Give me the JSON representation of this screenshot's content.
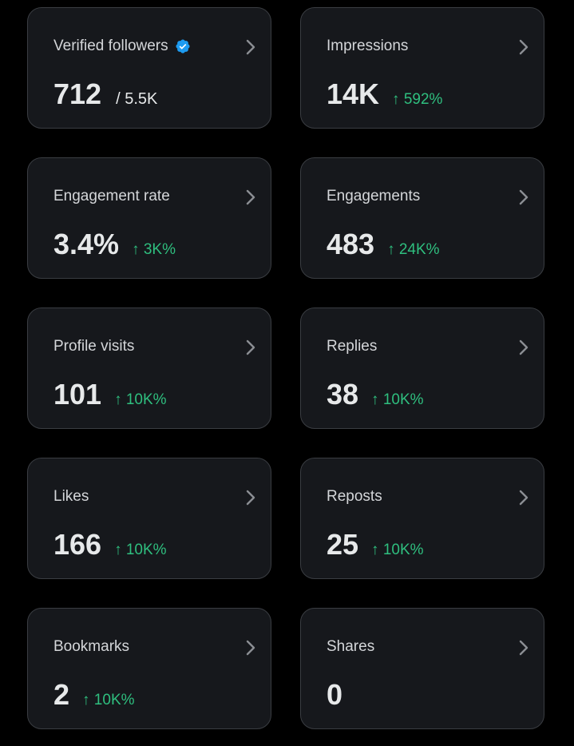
{
  "cards": [
    {
      "id": "verified-followers",
      "title": "Verified followers",
      "value": "712",
      "secondary": "/ 5.5K",
      "delta": "",
      "verified": true
    },
    {
      "id": "impressions",
      "title": "Impressions",
      "value": "14K",
      "secondary": "",
      "delta": "↑ 592%"
    },
    {
      "id": "engagement-rate",
      "title": "Engagement rate",
      "value": "3.4%",
      "secondary": "",
      "delta": "↑ 3K%"
    },
    {
      "id": "engagements",
      "title": "Engagements",
      "value": "483",
      "secondary": "",
      "delta": "↑ 24K%"
    },
    {
      "id": "profile-visits",
      "title": "Profile visits",
      "value": "101",
      "secondary": "",
      "delta": "↑ 10K%"
    },
    {
      "id": "replies",
      "title": "Replies",
      "value": "38",
      "secondary": "",
      "delta": "↑ 10K%"
    },
    {
      "id": "likes",
      "title": "Likes",
      "value": "166",
      "secondary": "",
      "delta": "↑ 10K%"
    },
    {
      "id": "reposts",
      "title": "Reposts",
      "value": "25",
      "secondary": "",
      "delta": "↑ 10K%"
    },
    {
      "id": "bookmarks",
      "title": "Bookmarks",
      "value": "2",
      "secondary": "",
      "delta": "↑ 10K%"
    },
    {
      "id": "shares",
      "title": "Shares",
      "value": "0",
      "secondary": "",
      "delta": ""
    }
  ],
  "icons": {
    "verified": "verified-badge-icon",
    "chevron": "chevron-right-icon"
  },
  "colors": {
    "background": "#000000",
    "card": "#16181c",
    "card_border": "#3a3d42",
    "positive_delta": "#2fbf7f",
    "verified_blue": "#1d9bf0"
  }
}
